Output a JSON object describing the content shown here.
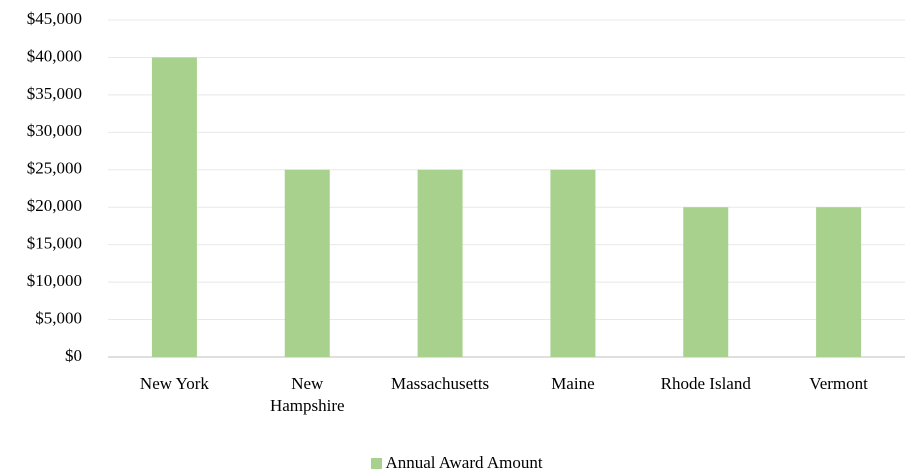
{
  "chart_data": {
    "type": "bar",
    "categories": [
      "New York",
      "New Hampshire",
      "Massachusetts",
      "Maine",
      "Rhode Island",
      "Vermont"
    ],
    "series": [
      {
        "name": "Annual Award Amount",
        "color": "#a9d18e",
        "values": [
          40000,
          25000,
          25000,
          25000,
          20000,
          20000
        ]
      }
    ],
    "ylim": [
      0,
      45000
    ],
    "yticks": [
      {
        "value": 0,
        "label": "$0"
      },
      {
        "value": 5000,
        "label": "$5,000"
      },
      {
        "value": 10000,
        "label": "$10,000"
      },
      {
        "value": 15000,
        "label": "$15,000"
      },
      {
        "value": 20000,
        "label": "$20,000"
      },
      {
        "value": 25000,
        "label": "$25,000"
      },
      {
        "value": 30000,
        "label": "$30,000"
      },
      {
        "value": 35000,
        "label": "$35,000"
      },
      {
        "value": 40000,
        "label": "$40,000"
      },
      {
        "value": 45000,
        "label": "$45,000"
      }
    ],
    "grid": true,
    "legend": "bottom"
  }
}
